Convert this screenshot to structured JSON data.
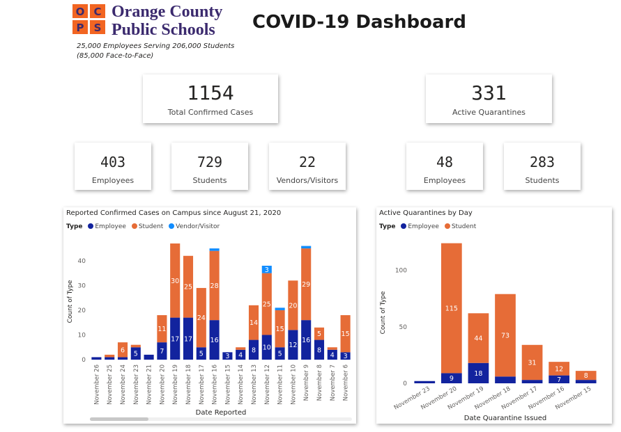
{
  "header": {
    "logo_letters": [
      "O",
      "C",
      "P",
      "S"
    ],
    "org_line1": "Orange County",
    "org_line2": "Public Schools",
    "tagline1": "25,000 Employees Serving 206,000 Students",
    "tagline2": "(85,000 Face-to-Face)",
    "title": "COVID-19 Dashboard"
  },
  "cards": {
    "total_cases": {
      "value": "1154",
      "label": "Total Confirmed Cases"
    },
    "active_quarantines": {
      "value": "331",
      "label": "Active Quarantines"
    },
    "cases_employees": {
      "value": "403",
      "label": "Employees"
    },
    "cases_students": {
      "value": "729",
      "label": "Students"
    },
    "cases_vendors": {
      "value": "22",
      "label": "Vendors/Visitors"
    },
    "quar_employees": {
      "value": "48",
      "label": "Employees"
    },
    "quar_students": {
      "value": "283",
      "label": "Students"
    }
  },
  "colors": {
    "employee": "#12239e",
    "student": "#e66c37",
    "vendor": "#118dff",
    "logo_orange": "#f26522",
    "logo_text": "#3b2a6e"
  },
  "chart_data": [
    {
      "type": "bar",
      "stacked": true,
      "title": "Reported Confirmed Cases on Campus since August 21, 2020",
      "legend_title": "Type",
      "xlabel": "Date Reported",
      "ylabel": "Count of Type",
      "ylim": [
        0,
        47
      ],
      "yticks": [
        0,
        10,
        20,
        30,
        40
      ],
      "categories": [
        "November 26",
        "November 25",
        "November 24",
        "November 23",
        "November 21",
        "November 20",
        "November 19",
        "November 18",
        "November 17",
        "November 16",
        "November 15",
        "November 14",
        "November 13",
        "November 12",
        "November 11",
        "November 10",
        "November 9",
        "November 8",
        "November 7",
        "November 6"
      ],
      "series": [
        {
          "name": "Employee",
          "values": [
            1,
            1,
            1,
            5,
            2,
            7,
            17,
            17,
            5,
            16,
            3,
            4,
            8,
            10,
            5,
            12,
            16,
            8,
            4,
            3
          ]
        },
        {
          "name": "Student",
          "values": [
            0,
            1,
            6,
            1,
            0,
            11,
            30,
            25,
            24,
            28,
            0,
            1,
            14,
            25,
            15,
            20,
            29,
            5,
            1,
            15
          ]
        },
        {
          "name": "Vendor/Visitor",
          "values": [
            0,
            0,
            0,
            0,
            0,
            0,
            0,
            0,
            0,
            1,
            0,
            0,
            0,
            3,
            1,
            0,
            1,
            0,
            0,
            0
          ]
        }
      ],
      "data_labels": {
        "Employee": [
          "",
          "",
          "",
          "5",
          "",
          "7",
          "17",
          "17",
          "5",
          "16",
          "3",
          "4",
          "8",
          "10",
          "5",
          "12",
          "16",
          "8",
          "4",
          "3"
        ],
        "Student": [
          "",
          "",
          "6",
          "",
          "",
          "11",
          "30",
          "25",
          "24",
          "28",
          "",
          "",
          "14",
          "25",
          "15",
          "20",
          "29",
          "5",
          "",
          "15"
        ],
        "Vendor/Visitor": [
          "",
          "",
          "",
          "",
          "",
          "",
          "",
          "",
          "",
          "",
          "",
          "",
          "",
          "3",
          "",
          "",
          "",
          "",
          "",
          ""
        ]
      }
    },
    {
      "type": "bar",
      "stacked": true,
      "title": "Active Quarantines by Day",
      "legend_title": "Type",
      "xlabel": "Date Quarantine Issued",
      "ylabel": "Count of Type",
      "ylim": [
        0,
        125
      ],
      "yticks": [
        0,
        50,
        100
      ],
      "categories": [
        "November 23",
        "November 20",
        "November 19",
        "November 18",
        "November 17",
        "November 16",
        "November 15"
      ],
      "series": [
        {
          "name": "Employee",
          "values": [
            2,
            9,
            18,
            6,
            3,
            7,
            3
          ]
        },
        {
          "name": "Student",
          "values": [
            0,
            115,
            44,
            73,
            31,
            12,
            8
          ]
        }
      ],
      "data_labels": {
        "Employee": [
          "",
          "9",
          "18",
          "",
          "",
          "7",
          ""
        ],
        "Student": [
          "",
          "115",
          "44",
          "73",
          "31",
          "12",
          "8"
        ]
      }
    }
  ]
}
